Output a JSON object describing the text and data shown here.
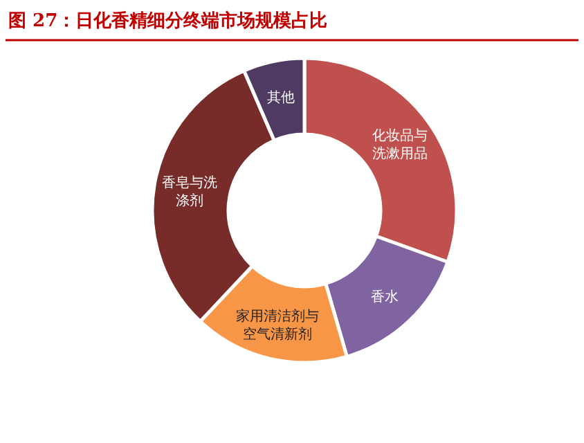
{
  "chart_data": {
    "type": "donut",
    "title": "图 27：日化香精细分终端市场规模占比",
    "categories": [
      "化妆品与洗漱用品",
      "香水",
      "家用清洁剂与空气清新剂",
      "香皂与洗涤剂",
      "其他"
    ],
    "values": [
      30.5,
      15,
      16.5,
      31.5,
      6.5
    ],
    "colors": [
      "#c0504d",
      "#8064a2",
      "#f79646",
      "#772c2a",
      "#4f3b62"
    ]
  }
}
